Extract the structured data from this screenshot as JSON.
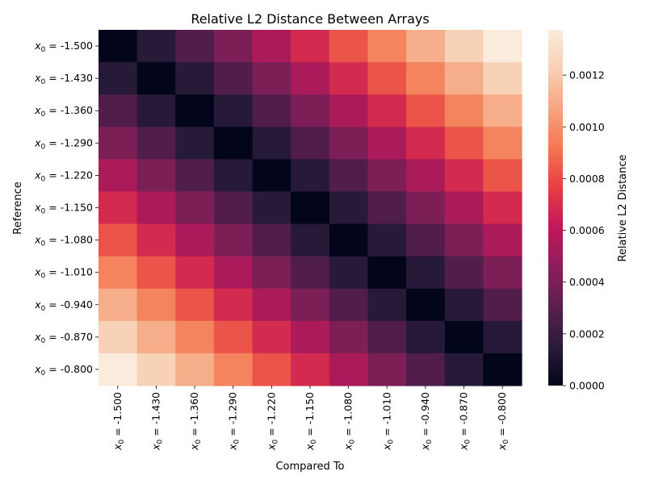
{
  "chart_data": {
    "type": "heatmap",
    "title": "Relative L2 Distance Between Arrays",
    "xlabel": "Compared To",
    "ylabel": "Reference",
    "tick_prefix_var": "x",
    "tick_prefix_sub": "0",
    "tick_prefix_eq": " = ",
    "categories": [
      "-1.500",
      "-1.430",
      "-1.360",
      "-1.290",
      "-1.220",
      "-1.150",
      "-1.080",
      "-1.010",
      "-0.940",
      "-0.870",
      "-0.800"
    ],
    "values": [
      [
        0.0,
        0.000137,
        0.000275,
        0.000412,
        0.00055,
        0.000687,
        0.000825,
        0.000962,
        0.0011,
        0.001237,
        0.001375
      ],
      [
        0.000137,
        0.0,
        0.000137,
        0.000275,
        0.000412,
        0.00055,
        0.000687,
        0.000825,
        0.000962,
        0.0011,
        0.001237
      ],
      [
        0.000275,
        0.000137,
        0.0,
        0.000137,
        0.000275,
        0.000412,
        0.00055,
        0.000687,
        0.000825,
        0.000962,
        0.0011
      ],
      [
        0.000412,
        0.000275,
        0.000137,
        0.0,
        0.000137,
        0.000275,
        0.000412,
        0.00055,
        0.000687,
        0.000825,
        0.000962
      ],
      [
        0.00055,
        0.000412,
        0.000275,
        0.000137,
        0.0,
        0.000137,
        0.000275,
        0.000412,
        0.00055,
        0.000687,
        0.000825
      ],
      [
        0.000687,
        0.00055,
        0.000412,
        0.000275,
        0.000137,
        0.0,
        0.000137,
        0.000275,
        0.000412,
        0.00055,
        0.000687
      ],
      [
        0.000825,
        0.000687,
        0.00055,
        0.000412,
        0.000275,
        0.000137,
        0.0,
        0.000137,
        0.000275,
        0.000412,
        0.00055
      ],
      [
        0.000962,
        0.000825,
        0.000687,
        0.00055,
        0.000412,
        0.000275,
        0.000137,
        0.0,
        0.000137,
        0.000275,
        0.000412
      ],
      [
        0.0011,
        0.000962,
        0.000825,
        0.000687,
        0.00055,
        0.000412,
        0.000275,
        0.000137,
        0.0,
        0.000137,
        0.000275
      ],
      [
        0.001237,
        0.0011,
        0.000962,
        0.000825,
        0.000687,
        0.00055,
        0.000412,
        0.000275,
        0.000137,
        0.0,
        0.000137
      ],
      [
        0.001375,
        0.001237,
        0.0011,
        0.000962,
        0.000825,
        0.000687,
        0.00055,
        0.000412,
        0.000275,
        0.000137,
        0.0
      ]
    ],
    "colorbar": {
      "label": "Relative L2 Distance",
      "range": [
        0,
        0.001375
      ],
      "ticks": [
        0.0,
        0.0002,
        0.0004,
        0.0006,
        0.0008,
        0.001,
        0.0012
      ],
      "tick_labels": [
        "0.0000",
        "0.0002",
        "0.0004",
        "0.0006",
        "0.0008",
        "0.0010",
        "0.0012"
      ]
    },
    "colormap": "rocket",
    "colormap_stops": [
      "#03051a",
      "#2b1c3b",
      "#5a1f4f",
      "#8c1f5b",
      "#c0185a",
      "#e63e44",
      "#f37651",
      "#f6a47e",
      "#f8cfb3",
      "#faebdd"
    ],
    "grid": false
  }
}
